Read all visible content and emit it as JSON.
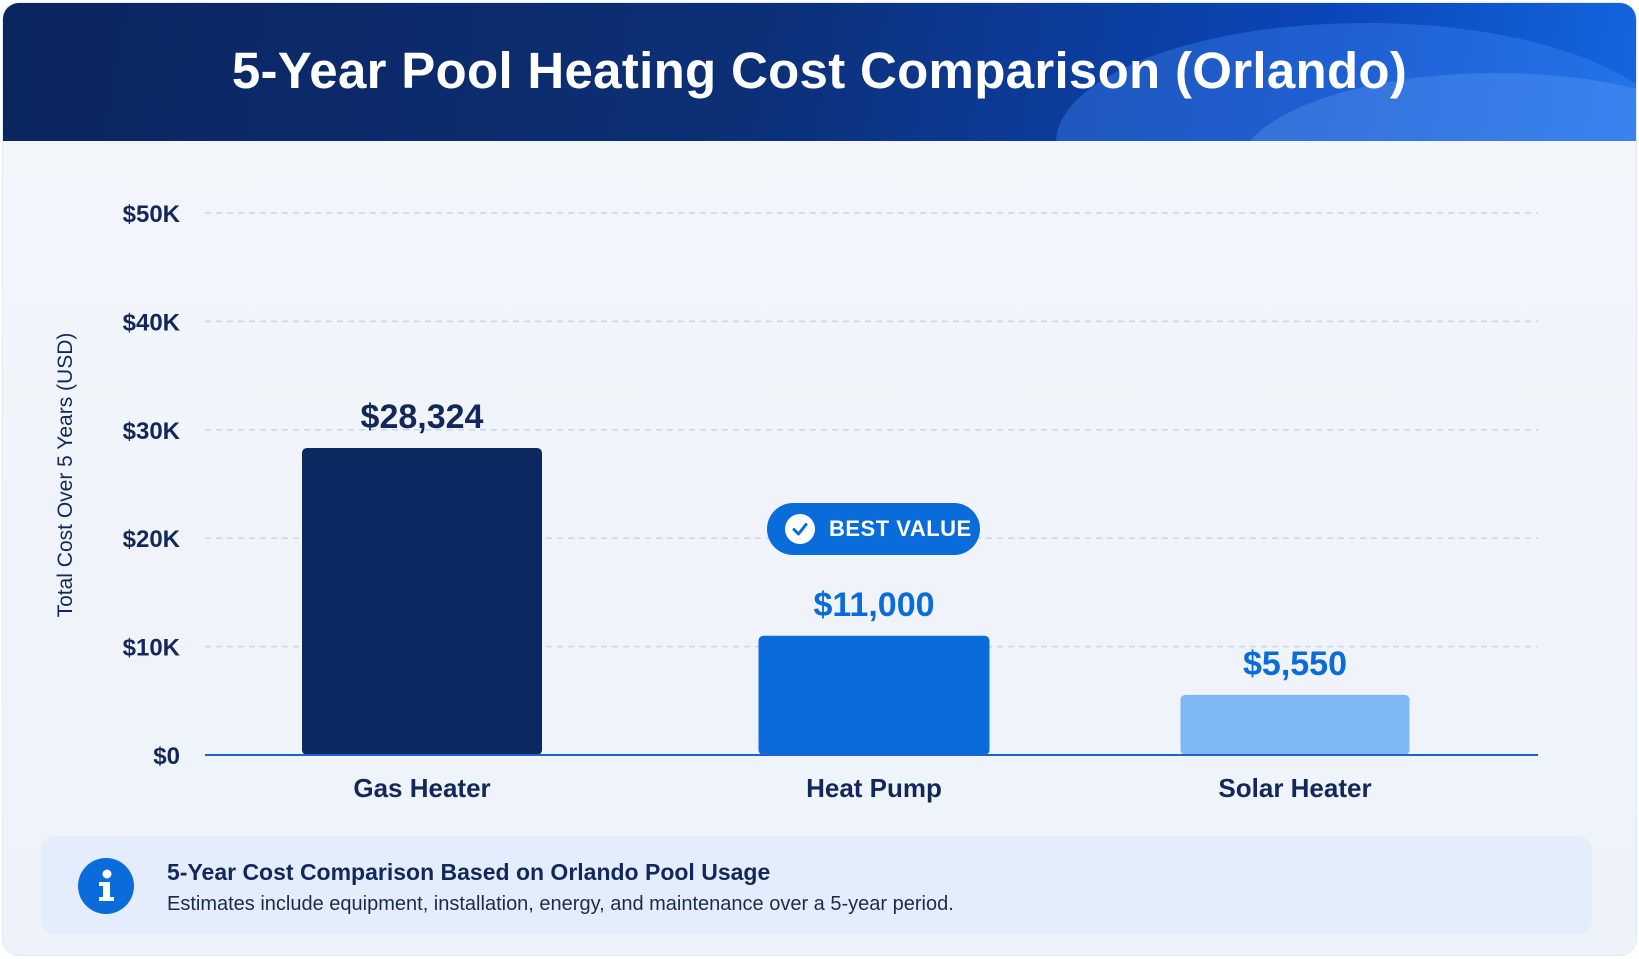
{
  "header": {
    "title": "5-Year Pool Heating Cost Comparison (Orlando)"
  },
  "chart_data": {
    "type": "bar",
    "title": "5-Year Pool Heating Cost Comparison (Orlando)",
    "xlabel": "",
    "ylabel": "Total Cost Over 5 Years (USD)",
    "ylim": [
      0,
      50000
    ],
    "yticks": [
      0,
      10000,
      20000,
      30000,
      40000,
      50000
    ],
    "ytick_labels": [
      "$0",
      "$10K",
      "$20K",
      "$30K",
      "$40K",
      "$50K"
    ],
    "grid": true,
    "categories": [
      "Gas Heater",
      "Heat Pump",
      "Solar Heater"
    ],
    "values": [
      28324,
      11000,
      5550
    ],
    "value_labels": [
      "$28,324",
      "$11,000",
      "$5,550"
    ],
    "bar_colors": [
      "#0b2860",
      "#0a6cdb",
      "#7eb8f5"
    ],
    "value_label_colors": [
      "#13285a",
      "#0a6cdb",
      "#0a6cdb"
    ]
  },
  "badge": {
    "label": "BEST VALUE",
    "icon": "check-circle-icon"
  },
  "info": {
    "icon": "info-icon",
    "heading": "5-Year Cost Comparison Based on Orlando Pool Usage",
    "text": "Estimates include equipment, installation, energy, and maintenance over a 5-year period."
  }
}
